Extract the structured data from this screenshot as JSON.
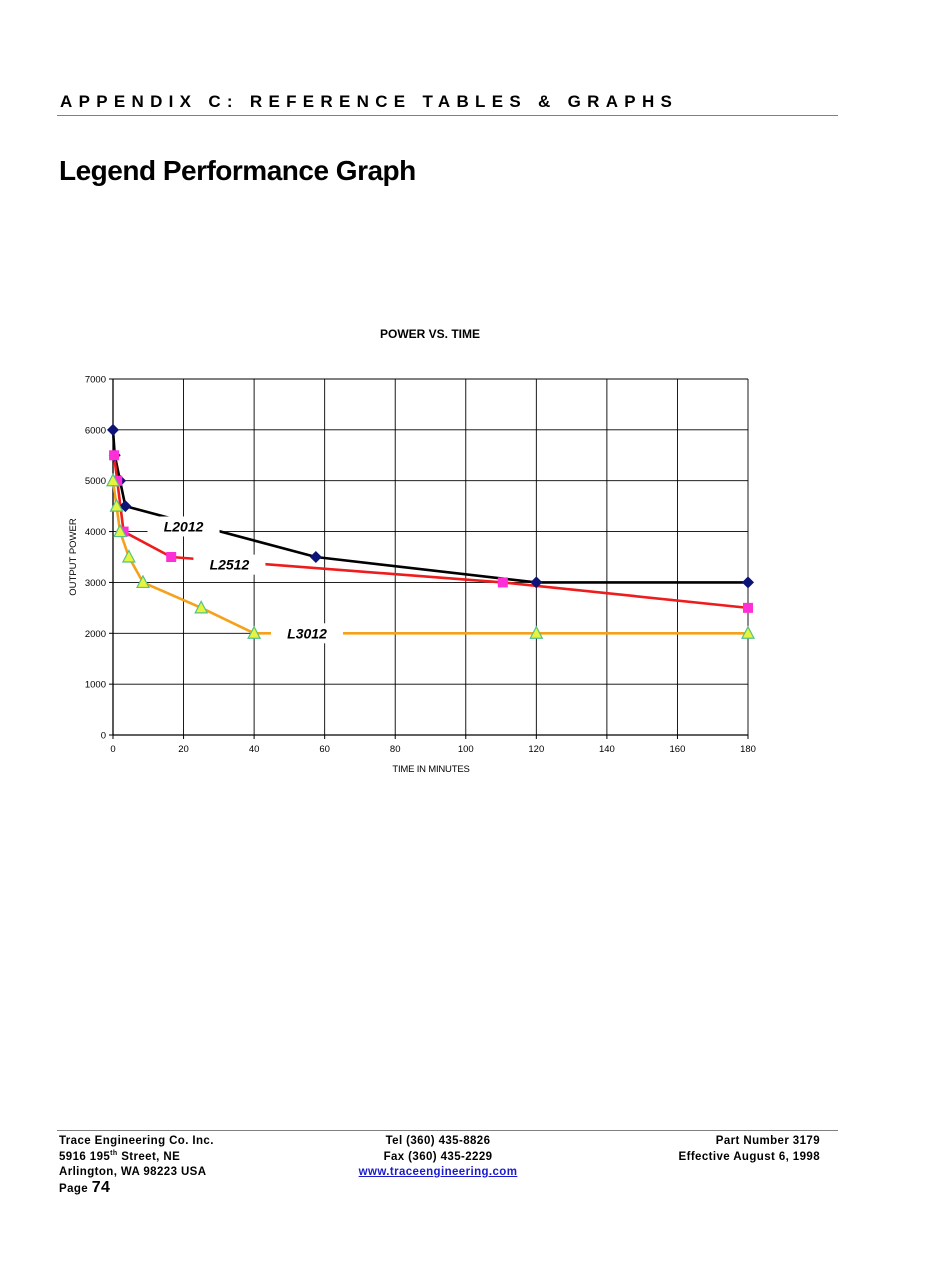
{
  "header": {
    "appendix_title": "APPENDIX C: REFERENCE TABLES & GRAPHS"
  },
  "page": {
    "title": "Legend Performance Graph"
  },
  "colors": {
    "L2012": "#000000",
    "L2512": "#ee1c1c",
    "L3012": "#f5a11a",
    "marker_diamond": "#0c1478",
    "marker_square": "#ff2fd7",
    "marker_triangle": "#e6f53c",
    "marker_triangle_edge": "#55c08a"
  },
  "chart_data": {
    "type": "line",
    "title": "POWER VS. TIME",
    "xlabel": "TIME IN MINUTES",
    "ylabel": "OUTPUT POWER",
    "xlim": [
      0,
      180
    ],
    "ylim": [
      0,
      7000
    ],
    "xticks": [
      0,
      20,
      40,
      60,
      80,
      100,
      120,
      140,
      160,
      180
    ],
    "yticks": [
      0,
      1000,
      2000,
      3000,
      4000,
      5000,
      6000,
      7000
    ],
    "grid": true,
    "legend": "inline labels",
    "series": [
      {
        "name": "L2012",
        "marker": "diamond",
        "x": [
          0,
          0.5,
          2,
          3.5,
          57.5,
          120,
          180
        ],
        "y": [
          6000,
          5500,
          5000,
          4500,
          3500,
          3000,
          3000
        ],
        "label_at": [
          20,
          4100
        ]
      },
      {
        "name": "L2512",
        "marker": "square",
        "x": [
          0.3,
          1.2,
          3,
          16.5,
          110.5,
          180
        ],
        "y": [
          5500,
          5000,
          4000,
          3500,
          3000,
          2500
        ],
        "label_at": [
          33,
          3350
        ]
      },
      {
        "name": "L3012",
        "marker": "triangle",
        "x": [
          0,
          1,
          2,
          4.5,
          8.5,
          25,
          40,
          120,
          180
        ],
        "y": [
          5000,
          4500,
          4000,
          3500,
          3000,
          2500,
          2000,
          2000,
          2000
        ],
        "label_at": [
          55,
          2000
        ]
      }
    ]
  },
  "footer": {
    "company": "Trace Engineering Co. Inc.",
    "street_number": "5916 195",
    "street_sup": "th",
    "street_rest": " Street, NE",
    "city": "Arlington, WA 98223 USA",
    "tel": "Tel (360) 435-8826",
    "fax": "Fax (360) 435-2229",
    "website": "www.traceengineering.com",
    "part_number": "Part Number 3179",
    "effective": "Effective August 6, 1998",
    "page_label": "Page",
    "page_number": "74"
  }
}
